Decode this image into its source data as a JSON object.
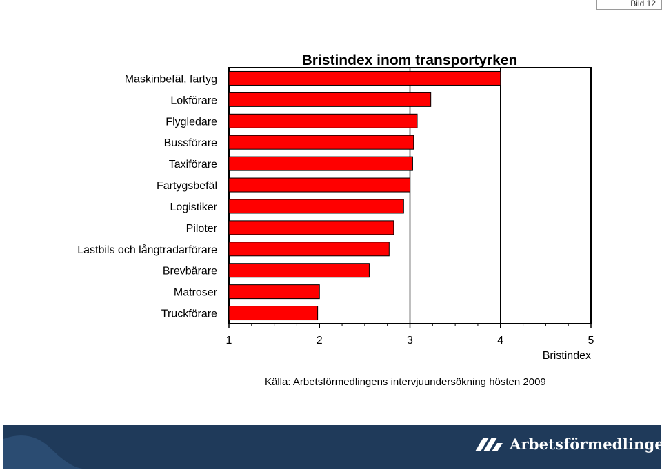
{
  "slide": {
    "label": "Bild 12"
  },
  "chart_data": {
    "type": "bar",
    "orientation": "horizontal",
    "title": "Bristindex inom transportyrken",
    "xlabel": "Bristindex",
    "xlim": [
      1,
      5
    ],
    "xticks": [
      1,
      2,
      3,
      4,
      5
    ],
    "categories": [
      "Maskinbefäl, fartyg",
      "Lokförare",
      "Flygledare",
      "Bussförare",
      "Taxiförare",
      "Fartygsbefäl",
      "Logistiker",
      "Piloter",
      "Lastbils och långtradarförare",
      "Brevbärare",
      "Matroser",
      "Truckförare"
    ],
    "values": [
      4.0,
      3.23,
      3.08,
      3.04,
      3.03,
      3.0,
      2.93,
      2.82,
      2.77,
      2.55,
      2.0,
      1.98
    ],
    "vertical_lines_at": [
      3,
      4
    ],
    "bar_color": "#ff0000",
    "grid": false
  },
  "source": "Källa: Arbetsförmedlingens intervjuundersökning hösten 2009",
  "footer": {
    "brand": "Arbetsförmedlingen",
    "background": "#1f3a5a"
  }
}
